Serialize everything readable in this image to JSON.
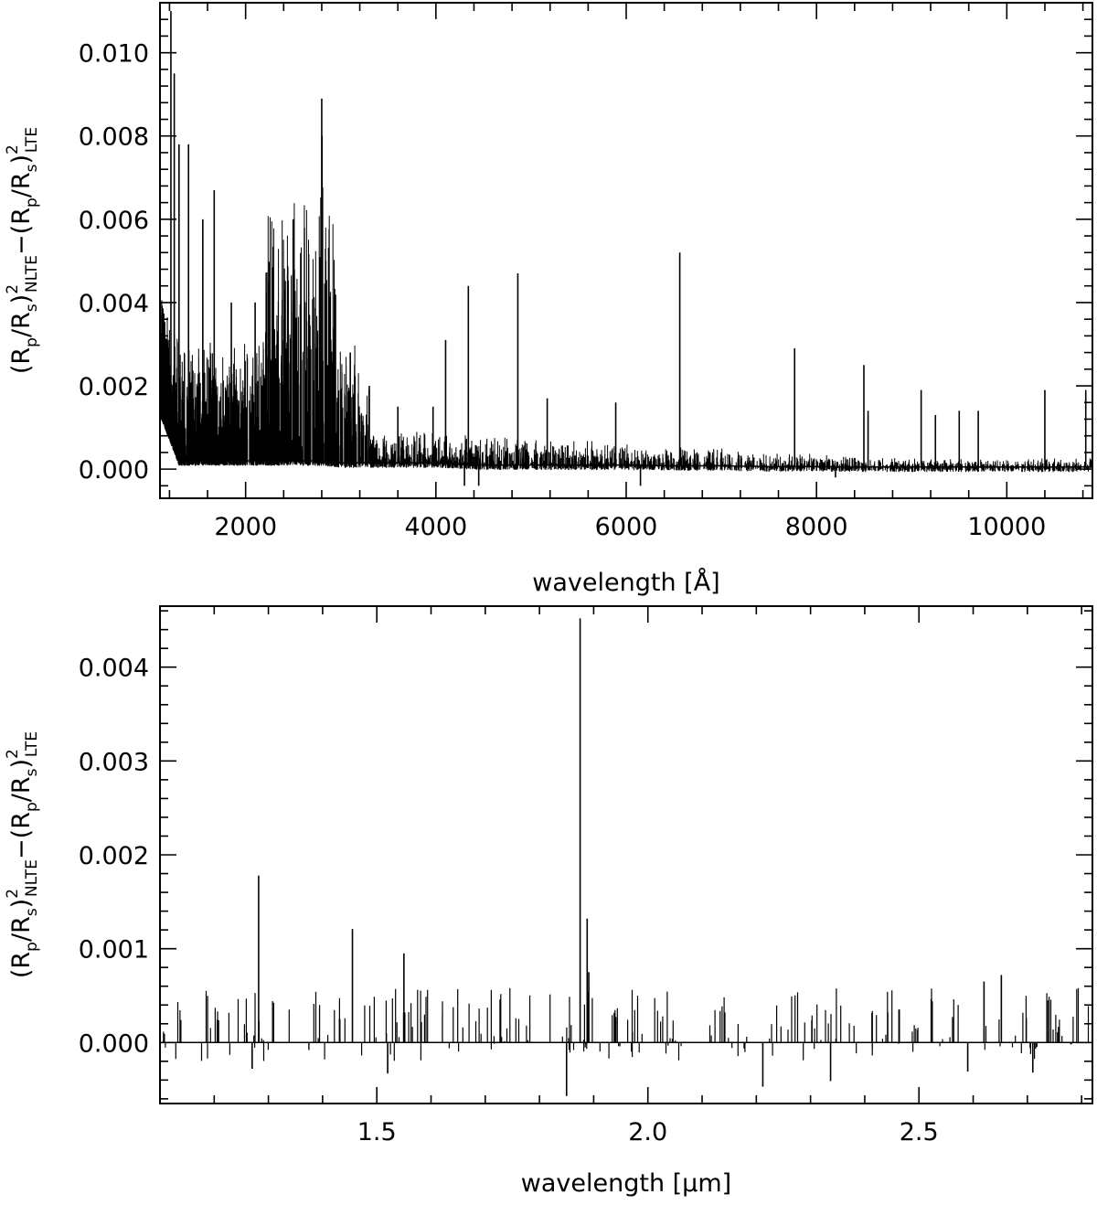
{
  "chart_data": [
    {
      "type": "line",
      "panel": "top",
      "xlabel": "wavelength [Å]",
      "ylabel": {
        "parts": [
          "(R",
          "p",
          "/R",
          "s",
          ")",
          "2",
          "NLTE",
          "−(R",
          "p",
          "/R",
          "s",
          ")",
          "2",
          "LTE"
        ]
      },
      "xlim": [
        1100,
        10900
      ],
      "ylim": [
        -0.0007,
        0.0112
      ],
      "xticks": [
        2000,
        4000,
        6000,
        8000,
        10000
      ],
      "xtick_labels": [
        "2000",
        "4000",
        "6000",
        "8000",
        "10000"
      ],
      "yticks": [
        0.0,
        0.002,
        0.004,
        0.006,
        0.008,
        0.01
      ],
      "ytick_labels": [
        "0.000",
        "0.002",
        "0.004",
        "0.006",
        "0.008",
        "0.010"
      ],
      "color": "#000000",
      "x": [
        1100,
        1300,
        1400,
        1600,
        1800,
        2000,
        2200,
        2400,
        2600,
        2800,
        3000,
        3200,
        3500,
        4000,
        4500,
        5000,
        5500,
        6000,
        6500,
        7000,
        7500,
        8000,
        8500,
        9000,
        9500,
        10000,
        10500,
        10900
      ],
      "y": [
        0.0014,
        0.0002,
        0.0002,
        0.0002,
        0.0002,
        0.0002,
        0.0002,
        0.0002,
        0.0002,
        0.0002,
        0.00015,
        0.00015,
        0.00015,
        0.00015,
        0.0001,
        0.0001,
        0.0001,
        0.0001,
        8e-05,
        8e-05,
        6e-05,
        6e-05,
        5e-05,
        5e-05,
        5e-05,
        5e-05,
        5e-05,
        5e-05
      ],
      "peaks": [
        {
          "x": 1215,
          "y": 0.011
        },
        {
          "x": 1250,
          "y": 0.0095
        },
        {
          "x": 1300,
          "y": 0.0078
        },
        {
          "x": 1400,
          "y": 0.0078
        },
        {
          "x": 1550,
          "y": 0.006
        },
        {
          "x": 1670,
          "y": 0.0067
        },
        {
          "x": 1850,
          "y": 0.004
        },
        {
          "x": 2100,
          "y": 0.004
        },
        {
          "x": 2500,
          "y": 0.006
        },
        {
          "x": 2800,
          "y": 0.0089
        },
        {
          "x": 2803,
          "y": 0.008
        },
        {
          "x": 3100,
          "y": 0.0028
        },
        {
          "x": 3300,
          "y": 0.002
        },
        {
          "x": 3600,
          "y": 0.0015
        },
        {
          "x": 3970,
          "y": 0.0015
        },
        {
          "x": 4102,
          "y": 0.0031
        },
        {
          "x": 4341,
          "y": 0.0044
        },
        {
          "x": 4861,
          "y": 0.0047
        },
        {
          "x": 5170,
          "y": 0.0017
        },
        {
          "x": 5890,
          "y": 0.0016
        },
        {
          "x": 6563,
          "y": 0.0052
        },
        {
          "x": 7770,
          "y": 0.0029
        },
        {
          "x": 8498,
          "y": 0.0025
        },
        {
          "x": 8542,
          "y": 0.0014
        },
        {
          "x": 9100,
          "y": 0.0019
        },
        {
          "x": 9250,
          "y": 0.0013
        },
        {
          "x": 9500,
          "y": 0.0014
        },
        {
          "x": 9700,
          "y": 0.0014
        },
        {
          "x": 10400,
          "y": 0.0019
        },
        {
          "x": 10830,
          "y": 0.0019
        }
      ],
      "dips": [
        {
          "x": 4300,
          "y": -0.0004
        },
        {
          "x": 4450,
          "y": -0.0004
        },
        {
          "x": 6150,
          "y": -0.0004
        },
        {
          "x": 8200,
          "y": -0.0002
        }
      ]
    },
    {
      "type": "line",
      "panel": "bottom",
      "xlabel": "wavelength [μm]",
      "ylabel": {
        "parts": [
          "(R",
          "p",
          "/R",
          "s",
          ")",
          "2",
          "NLTE",
          "−(R",
          "p",
          "/R",
          "s",
          ")",
          "2",
          "LTE"
        ]
      },
      "xlim": [
        1.1,
        2.82
      ],
      "ylim": [
        -0.00065,
        0.00465
      ],
      "xticks": [
        1.5,
        2.0,
        2.5
      ],
      "xtick_labels": [
        "1.5",
        "2.0",
        "2.5"
      ],
      "yticks": [
        0.0,
        0.001,
        0.002,
        0.003,
        0.004
      ],
      "ytick_labels": [
        "0.000",
        "0.001",
        "0.002",
        "0.003",
        "0.004"
      ],
      "color": "#000000",
      "x": [
        1.1,
        2.82
      ],
      "y": [
        0.0,
        0.0
      ],
      "peaks": [
        {
          "x": 1.282,
          "y": 0.00178
        },
        {
          "x": 1.455,
          "y": 0.00121
        },
        {
          "x": 1.55,
          "y": 0.00095
        },
        {
          "x": 1.875,
          "y": 0.00452
        },
        {
          "x": 1.888,
          "y": 0.00132
        },
        {
          "x": 1.891,
          "y": 0.00075
        },
        {
          "x": 2.652,
          "y": 0.00072
        },
        {
          "x": 2.62,
          "y": 0.00065
        }
      ],
      "dips": [
        {
          "x": 1.85,
          "y": -0.00057
        },
        {
          "x": 2.212,
          "y": -0.00047
        },
        {
          "x": 2.337,
          "y": -0.00041
        },
        {
          "x": 1.52,
          "y": -0.00033
        },
        {
          "x": 2.71,
          "y": -0.00032
        },
        {
          "x": 2.59,
          "y": -0.00031
        },
        {
          "x": 1.27,
          "y": -0.00028
        }
      ]
    }
  ]
}
